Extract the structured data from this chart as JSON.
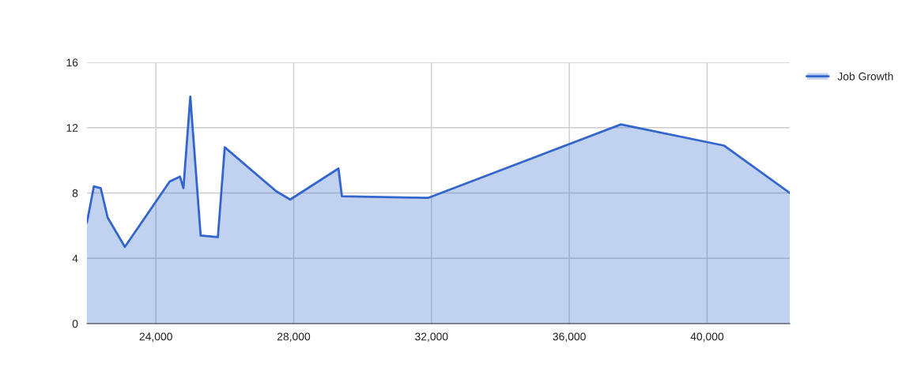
{
  "chart_data": {
    "type": "area",
    "x": [
      22000,
      22200,
      22400,
      22600,
      23100,
      24400,
      24700,
      24800,
      25000,
      25300,
      25800,
      26000,
      27500,
      27900,
      29300,
      29400,
      31900,
      37500,
      40500,
      42400
    ],
    "series": [
      {
        "name": "Job Growth",
        "color": "#3366cc",
        "values": [
          6.2,
          8.4,
          8.3,
          6.5,
          4.7,
          8.7,
          9.0,
          8.3,
          13.9,
          5.4,
          5.3,
          10.8,
          8.1,
          7.6,
          9.5,
          7.8,
          7.7,
          12.2,
          10.9,
          8.0
        ]
      }
    ],
    "xlim": [
      22000,
      42400
    ],
    "xticks": [
      {
        "value": 24000,
        "label": "24,000"
      },
      {
        "value": 28000,
        "label": "28,000"
      },
      {
        "value": 32000,
        "label": "32,000"
      },
      {
        "value": 36000,
        "label": "36,000"
      },
      {
        "value": 40000,
        "label": "40,000"
      }
    ],
    "ylim": [
      0,
      16
    ],
    "yticks": [
      0,
      4,
      8,
      12,
      16
    ],
    "grid": true,
    "legend": "top right"
  }
}
